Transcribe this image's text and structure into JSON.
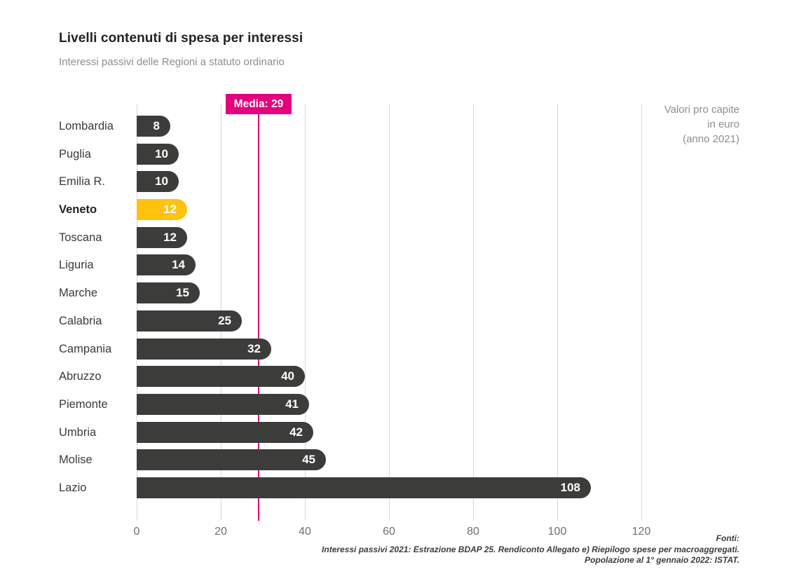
{
  "header": {
    "title": "Livelli contenuti di spesa per interessi",
    "subtitle": "Interessi passivi delle Regioni a statuto ordinario"
  },
  "annotation": {
    "lines": [
      "Valori pro capite",
      "in euro",
      "(anno 2021)"
    ]
  },
  "average": {
    "label": "Media: 29",
    "value": 29
  },
  "chart_data": {
    "type": "bar",
    "orientation": "horizontal",
    "title": "Livelli contenuti di spesa per interessi",
    "subtitle": "Interessi passivi delle Regioni a statuto ordinario",
    "unit_note": "Valori pro capite in euro (anno 2021)",
    "categories": [
      "Lombardia",
      "Puglia",
      "Emilia R.",
      "Veneto",
      "Toscana",
      "Liguria",
      "Marche",
      "Calabria",
      "Campania",
      "Abruzzo",
      "Piemonte",
      "Umbria",
      "Molise",
      "Lazio"
    ],
    "values": [
      8,
      10,
      10,
      12,
      12,
      14,
      15,
      25,
      32,
      40,
      41,
      42,
      45,
      108
    ],
    "highlighted_category": "Veneto",
    "average": 29,
    "x_ticks": [
      0,
      20,
      40,
      60,
      80,
      100,
      120
    ],
    "xlim": [
      0,
      130
    ],
    "grid": true,
    "legend": "none",
    "colors": {
      "bar": "#3c3c3b",
      "highlight": "#ffc20e",
      "average": "#e5007d",
      "value_text": "#ffffff"
    }
  },
  "footer": {
    "lines": [
      "Fonti:",
      "Interessi passivi 2021: Estrazione BDAP 25. Rendiconto Allegato e) Riepilogo spese per macroaggregati.",
      "Popolazione al 1° gennaio 2022: ISTAT."
    ]
  }
}
